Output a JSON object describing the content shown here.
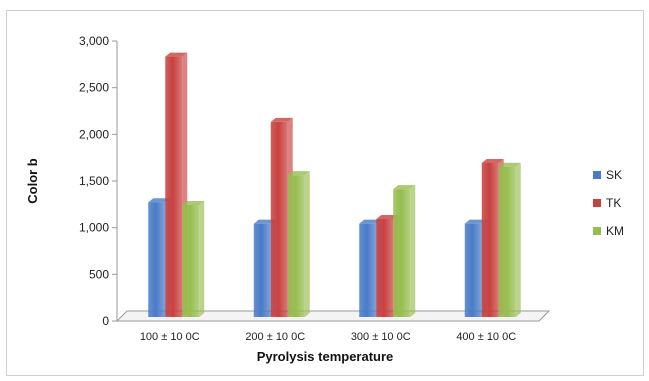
{
  "chart_data": {
    "type": "bar",
    "title": "",
    "xlabel": "Pyrolysis temperature",
    "ylabel": "Color b",
    "ylim": [
      0,
      3000
    ],
    "yticks": [
      "0",
      "500",
      "1,000",
      "1,500",
      "2,000",
      "2,500",
      "3,000"
    ],
    "ytick_values": [
      0,
      500,
      1000,
      1500,
      2000,
      2500,
      3000
    ],
    "categories": [
      "100 ± 10 0C",
      "200 ± 10 0C",
      "300 ± 10 0C",
      "400 ± 10 0C"
    ],
    "series": [
      {
        "name": "SK",
        "color": "#4a7bc8",
        "values": [
          1230,
          1000,
          1000,
          1000
        ]
      },
      {
        "name": "TK",
        "color": "#c8413f",
        "values": [
          2790,
          2090,
          1050,
          1650
        ]
      },
      {
        "name": "KM",
        "color": "#96bd4e",
        "values": [
          1200,
          1520,
          1370,
          1610
        ]
      }
    ],
    "grid": false,
    "legend_position": "right",
    "style": "3d-clustered-bar"
  }
}
